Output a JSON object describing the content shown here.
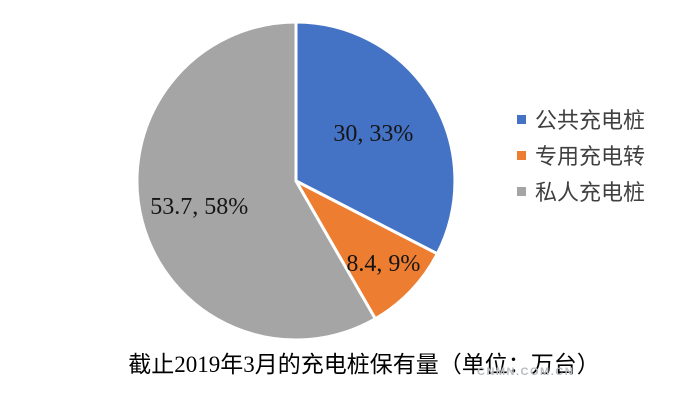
{
  "chart_data": {
    "type": "pie",
    "title": "截止2019年3月的充电桩保有量（单位：万台）",
    "series": [
      {
        "name": "公共充电桩",
        "value": 30,
        "percent": 33,
        "label": "30, 33%",
        "color": "#4472C4"
      },
      {
        "name": "专用充电转",
        "value": 8.4,
        "percent": 9,
        "label": "8.4, 9%",
        "color": "#ED7D31"
      },
      {
        "name": "私人充电桩",
        "value": 53.7,
        "percent": 58,
        "label": "53.7, 58%",
        "color": "#A5A5A5"
      }
    ],
    "start_angle_deg": 0,
    "direction": "clockwise",
    "legend_position": "right",
    "slice_border_color": "#FFFFFF",
    "label_color": "#151515",
    "slice_label_radius": [
      0.57,
      0.76,
      0.63
    ]
  },
  "watermark": "CNMN.COM.CN"
}
